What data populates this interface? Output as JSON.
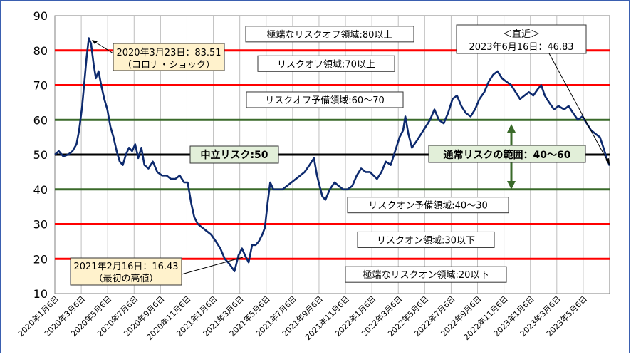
{
  "chart_data": {
    "type": "line",
    "ylim": [
      10,
      90
    ],
    "yticks": [
      "10",
      "20",
      "30",
      "40",
      "50",
      "60",
      "70",
      "80",
      "90"
    ],
    "x_tick_labels": [
      "2020年1月6日",
      "2020年3月6日",
      "2020年5月6日",
      "2020年7月6日",
      "2020年9月6日",
      "2020年11月6日",
      "2021年1月6日",
      "2021年3月6日",
      "2021年5月6日",
      "2021年7月6日",
      "2021年9月6日",
      "2021年11月6日",
      "2022年1月6日",
      "2022年3月6日",
      "2022年5月6日",
      "2022年7月6日",
      "2022年9月6日",
      "2022年11月6日",
      "2023年1月6日",
      "2023年3月6日",
      "2023年5月6日"
    ],
    "grid": true,
    "series_color": "#0d2a6e",
    "x_start": "2020-01-06",
    "x_end": "2023-06-16",
    "series": [
      {
        "points": [
          [
            "2020-01-06",
            50
          ],
          [
            "2020-01-15",
            51
          ],
          [
            "2020-01-25",
            49.5
          ],
          [
            "2020-02-05",
            50
          ],
          [
            "2020-02-15",
            51
          ],
          [
            "2020-02-24",
            53
          ],
          [
            "2020-03-01",
            57
          ],
          [
            "2020-03-08",
            64
          ],
          [
            "2020-03-13",
            71
          ],
          [
            "2020-03-18",
            78
          ],
          [
            "2020-03-23",
            83.51
          ],
          [
            "2020-03-28",
            82
          ],
          [
            "2020-04-03",
            76
          ],
          [
            "2020-04-08",
            72
          ],
          [
            "2020-04-14",
            74
          ],
          [
            "2020-04-20",
            70
          ],
          [
            "2020-04-27",
            66
          ],
          [
            "2020-05-04",
            63
          ],
          [
            "2020-05-11",
            58
          ],
          [
            "2020-05-18",
            55
          ],
          [
            "2020-05-25",
            51
          ],
          [
            "2020-06-01",
            48
          ],
          [
            "2020-06-08",
            47
          ],
          [
            "2020-06-15",
            50
          ],
          [
            "2020-06-22",
            52
          ],
          [
            "2020-06-29",
            51
          ],
          [
            "2020-07-06",
            53
          ],
          [
            "2020-07-13",
            49
          ],
          [
            "2020-07-20",
            52
          ],
          [
            "2020-07-27",
            47
          ],
          [
            "2020-08-05",
            46
          ],
          [
            "2020-08-15",
            48
          ],
          [
            "2020-08-25",
            45
          ],
          [
            "2020-09-05",
            44
          ],
          [
            "2020-09-15",
            44
          ],
          [
            "2020-09-25",
            43
          ],
          [
            "2020-10-05",
            43
          ],
          [
            "2020-10-15",
            44
          ],
          [
            "2020-10-25",
            42
          ],
          [
            "2020-11-02",
            42
          ],
          [
            "2020-11-10",
            36
          ],
          [
            "2020-11-17",
            32
          ],
          [
            "2020-11-25",
            30
          ],
          [
            "2020-12-05",
            29
          ],
          [
            "2020-12-15",
            28
          ],
          [
            "2020-12-25",
            27
          ],
          [
            "2021-01-05",
            25
          ],
          [
            "2021-01-15",
            23
          ],
          [
            "2021-01-25",
            20
          ],
          [
            "2021-02-05",
            18.5
          ],
          [
            "2021-02-16",
            16.43
          ],
          [
            "2021-02-25",
            21
          ],
          [
            "2021-03-05",
            23
          ],
          [
            "2021-03-12",
            21
          ],
          [
            "2021-03-20",
            19
          ],
          [
            "2021-03-28",
            24
          ],
          [
            "2021-04-05",
            24
          ],
          [
            "2021-04-12",
            25
          ],
          [
            "2021-04-20",
            27
          ],
          [
            "2021-04-26",
            29
          ],
          [
            "2021-05-02",
            36
          ],
          [
            "2021-05-08",
            42
          ],
          [
            "2021-05-15",
            40
          ],
          [
            "2021-05-25",
            40
          ],
          [
            "2021-06-05",
            40
          ],
          [
            "2021-06-15",
            41
          ],
          [
            "2021-06-25",
            42
          ],
          [
            "2021-07-05",
            43
          ],
          [
            "2021-07-15",
            44
          ],
          [
            "2021-07-25",
            45
          ],
          [
            "2021-08-05",
            47
          ],
          [
            "2021-08-15",
            49
          ],
          [
            "2021-08-22",
            44
          ],
          [
            "2021-08-28",
            41
          ],
          [
            "2021-09-03",
            38
          ],
          [
            "2021-09-10",
            37
          ],
          [
            "2021-09-20",
            40
          ],
          [
            "2021-10-01",
            42
          ],
          [
            "2021-10-10",
            41
          ],
          [
            "2021-10-20",
            40
          ],
          [
            "2021-10-30",
            40
          ],
          [
            "2021-11-10",
            41
          ],
          [
            "2021-11-20",
            44
          ],
          [
            "2021-11-30",
            46
          ],
          [
            "2021-12-10",
            45
          ],
          [
            "2021-12-20",
            45
          ],
          [
            "2022-01-05",
            43
          ],
          [
            "2022-01-15",
            45
          ],
          [
            "2022-01-25",
            48
          ],
          [
            "2022-02-05",
            47
          ],
          [
            "2022-02-15",
            51
          ],
          [
            "2022-02-25",
            55
          ],
          [
            "2022-03-05",
            57
          ],
          [
            "2022-03-10",
            61
          ],
          [
            "2022-03-17",
            56
          ],
          [
            "2022-03-25",
            52
          ],
          [
            "2022-04-05",
            54
          ],
          [
            "2022-04-15",
            56
          ],
          [
            "2022-04-25",
            58
          ],
          [
            "2022-05-05",
            60
          ],
          [
            "2022-05-15",
            63
          ],
          [
            "2022-05-25",
            60
          ],
          [
            "2022-06-05",
            59
          ],
          [
            "2022-06-15",
            62
          ],
          [
            "2022-06-25",
            66
          ],
          [
            "2022-07-05",
            67
          ],
          [
            "2022-07-15",
            64
          ],
          [
            "2022-07-25",
            62
          ],
          [
            "2022-08-05",
            61
          ],
          [
            "2022-08-15",
            63
          ],
          [
            "2022-08-25",
            66
          ],
          [
            "2022-09-05",
            68
          ],
          [
            "2022-09-15",
            71
          ],
          [
            "2022-09-25",
            73
          ],
          [
            "2022-10-05",
            74
          ],
          [
            "2022-10-15",
            72
          ],
          [
            "2022-10-25",
            71
          ],
          [
            "2022-11-05",
            70
          ],
          [
            "2022-11-15",
            68
          ],
          [
            "2022-11-25",
            66
          ],
          [
            "2022-12-05",
            67
          ],
          [
            "2022-12-15",
            68
          ],
          [
            "2022-12-25",
            67
          ],
          [
            "2023-01-05",
            69
          ],
          [
            "2023-01-12",
            70
          ],
          [
            "2023-01-20",
            67
          ],
          [
            "2023-01-30",
            65
          ],
          [
            "2023-02-10",
            63
          ],
          [
            "2023-02-20",
            64
          ],
          [
            "2023-03-05",
            63
          ],
          [
            "2023-03-15",
            64
          ],
          [
            "2023-03-25",
            62
          ],
          [
            "2023-04-05",
            60
          ],
          [
            "2023-04-15",
            61
          ],
          [
            "2023-04-25",
            59
          ],
          [
            "2023-05-05",
            57
          ],
          [
            "2023-05-15",
            56
          ],
          [
            "2023-05-25",
            55
          ],
          [
            "2023-06-02",
            52
          ],
          [
            "2023-06-09",
            49
          ],
          [
            "2023-06-16",
            46.83
          ]
        ]
      }
    ],
    "bands": [
      {
        "y": 80,
        "color": "#ff0000",
        "label": "極端なリスクオフ領域:80以上"
      },
      {
        "y": 70,
        "color": "#ff0000",
        "label": "リスクオフ領域:70以上"
      },
      {
        "y": 60,
        "color": "#3a6a2a",
        "label": "リスクオフ予備領域:60～70"
      },
      {
        "y": 50,
        "color": "#000000",
        "label": "中立リスク:50"
      },
      {
        "y": 40,
        "color": "#3a6a2a",
        "label": "リスクオン予備領域:40～30"
      },
      {
        "y": 30,
        "color": "#ff0000",
        "label": "リスクオン領域:30以下"
      },
      {
        "y": 20,
        "color": "#ff0000",
        "label": "極端なリスクオン領域:20以下"
      }
    ],
    "annotations": {
      "covid_line1": "2020年3月23日：83.51",
      "covid_line2": "（コロナ・ショック）",
      "low_line1": "2021年2月16日：16.43",
      "low_line2": "（最初の高値）",
      "latest_line1": "＜直近＞",
      "latest_line2": "2023年6月16日：46.83",
      "normal_range": "通常リスクの範囲：40～60"
    },
    "colors": {
      "callout_fill": "#fff2cc",
      "green_fill": "#e2efd9",
      "arrow": "#3a6a2a"
    }
  }
}
